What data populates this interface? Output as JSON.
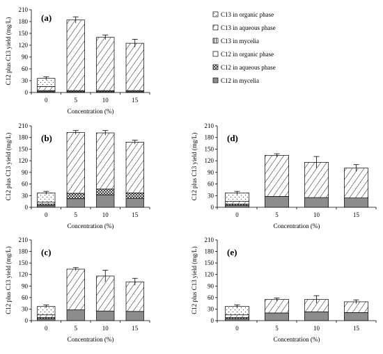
{
  "chart_data": [
    {
      "panel": "(a)",
      "type": "bar",
      "stacked": true,
      "categories": [
        "0",
        "5",
        "10",
        "15"
      ],
      "xlabel": "Concentration (%)",
      "ylabel": "C12 plus C13 yield (mg/L)",
      "ylim": [
        0,
        210
      ],
      "yticks": [
        "0",
        "30",
        "60",
        "90",
        "120",
        "150",
        "180",
        "210"
      ],
      "series": [
        {
          "name": "C12 in mycelia",
          "values": [
            2,
            2,
            2,
            2
          ]
        },
        {
          "name": "C12 in aqueous phase",
          "values": [
            3,
            3,
            3,
            3
          ]
        },
        {
          "name": "C12 in organic phase",
          "values": [
            0,
            0,
            0,
            0
          ]
        },
        {
          "name": "C13 in mycelia",
          "values": [
            0,
            0,
            0,
            0
          ]
        },
        {
          "name": "C13 in aqueous phase",
          "values": [
            10,
            179,
            135,
            120
          ]
        },
        {
          "name": "C13 in organic phase",
          "values": [
            21,
            0,
            0,
            0
          ]
        }
      ],
      "errors": [
        4,
        8,
        6,
        10
      ]
    },
    {
      "panel": "(b)",
      "type": "bar",
      "stacked": true,
      "categories": [
        "0",
        "5",
        "10",
        "15"
      ],
      "xlabel": "Concentration (%)",
      "ylabel": "C12 plus C13 yield (mg/L)",
      "ylim": [
        0,
        210
      ],
      "yticks": [
        "0",
        "30",
        "60",
        "90",
        "120",
        "150",
        "180",
        "210"
      ],
      "series": [
        {
          "name": "C12 in mycelia",
          "values": [
            4,
            22,
            32,
            23
          ]
        },
        {
          "name": "C12 in aqueous phase",
          "values": [
            4,
            14,
            15,
            14
          ]
        },
        {
          "name": "C12 in organic phase",
          "values": [
            0,
            0,
            0,
            0
          ]
        },
        {
          "name": "C13 in mycelia",
          "values": [
            0,
            0,
            0,
            0
          ]
        },
        {
          "name": "C13 in aqueous phase",
          "values": [
            5,
            157,
            145,
            131
          ]
        },
        {
          "name": "C13 in organic phase",
          "values": [
            24,
            0,
            0,
            0
          ]
        }
      ],
      "errors": [
        4,
        5,
        6,
        5
      ]
    },
    {
      "panel": "(c)",
      "type": "bar",
      "stacked": true,
      "categories": [
        "0",
        "5",
        "10",
        "15"
      ],
      "xlabel": "Concentration (%)",
      "ylabel": "C12 plus C13 yield (mg/L)",
      "ylim": [
        0,
        210
      ],
      "yticks": [
        "0",
        "30",
        "60",
        "90",
        "120",
        "150",
        "180",
        "210"
      ],
      "series": [
        {
          "name": "C12 in mycelia",
          "values": [
            5,
            28,
            25,
            24
          ]
        },
        {
          "name": "C12 in aqueous phase",
          "values": [
            3,
            0,
            0,
            0
          ]
        },
        {
          "name": "C12 in organic phase",
          "values": [
            0,
            0,
            0,
            0
          ]
        },
        {
          "name": "C13 in mycelia",
          "values": [
            0,
            0,
            0,
            0
          ]
        },
        {
          "name": "C13 in aqueous phase",
          "values": [
            7,
            106,
            91,
            77
          ]
        },
        {
          "name": "C13 in organic phase",
          "values": [
            22,
            0,
            0,
            0
          ]
        }
      ],
      "errors": [
        4,
        4,
        15,
        9
      ]
    },
    {
      "panel": "(d)",
      "type": "bar",
      "stacked": true,
      "categories": [
        "0",
        "5",
        "10",
        "15"
      ],
      "xlabel": "Concentration (%)",
      "ylabel": "C12 plus C13 yield (mg/L)",
      "ylim": [
        0,
        210
      ],
      "yticks": [
        "0",
        "30",
        "60",
        "90",
        "120",
        "150",
        "180",
        "210"
      ],
      "series": [
        {
          "name": "C12 in mycelia",
          "values": [
            5,
            28,
            25,
            24
          ]
        },
        {
          "name": "C12 in aqueous phase",
          "values": [
            3,
            0,
            0,
            0
          ]
        },
        {
          "name": "C12 in organic phase",
          "values": [
            0,
            0,
            0,
            0
          ]
        },
        {
          "name": "C13 in mycelia",
          "values": [
            0,
            0,
            0,
            0
          ]
        },
        {
          "name": "C13 in aqueous phase",
          "values": [
            7,
            106,
            91,
            77
          ]
        },
        {
          "name": "C13 in organic phase",
          "values": [
            22,
            0,
            0,
            0
          ]
        }
      ],
      "errors": [
        4,
        4,
        15,
        9
      ]
    },
    {
      "panel": "(e)",
      "type": "bar",
      "stacked": true,
      "categories": [
        "0",
        "5",
        "10",
        "15"
      ],
      "xlabel": "Concentration (%)",
      "ylabel": "C12 plus C13 yield (mg/L)",
      "ylim": [
        0,
        210
      ],
      "yticks": [
        "0",
        "30",
        "60",
        "90",
        "120",
        "150",
        "180",
        "210"
      ],
      "series": [
        {
          "name": "C12 in mycelia",
          "values": [
            5,
            20,
            23,
            21
          ]
        },
        {
          "name": "C12 in aqueous phase",
          "values": [
            3,
            0,
            0,
            0
          ]
        },
        {
          "name": "C12 in organic phase",
          "values": [
            0,
            0,
            0,
            0
          ]
        },
        {
          "name": "C13 in mycelia",
          "values": [
            0,
            0,
            0,
            0
          ]
        },
        {
          "name": "C13 in aqueous phase",
          "values": [
            7,
            35,
            32,
            28
          ]
        },
        {
          "name": "C13 in organic phase",
          "values": [
            22,
            0,
            0,
            0
          ]
        }
      ],
      "errors": [
        4,
        4,
        10,
        5
      ]
    }
  ],
  "legend": {
    "position": "top-right",
    "items": [
      {
        "label": "C13 in organic phase",
        "fill": "dots"
      },
      {
        "label": "C13 in aqueous phase",
        "fill": "diag"
      },
      {
        "label": "C13 in mycelia",
        "fill": "vert"
      },
      {
        "label": "C12 in organic phase",
        "fill": "white"
      },
      {
        "label": "C12 in aqueous phase",
        "fill": "cross"
      },
      {
        "label": "C12 in mycelia",
        "fill": "gray"
      }
    ]
  },
  "colors": {
    "mycelia_gray": "#8c8c8c",
    "axis": "#000000",
    "background": "#ffffff"
  }
}
